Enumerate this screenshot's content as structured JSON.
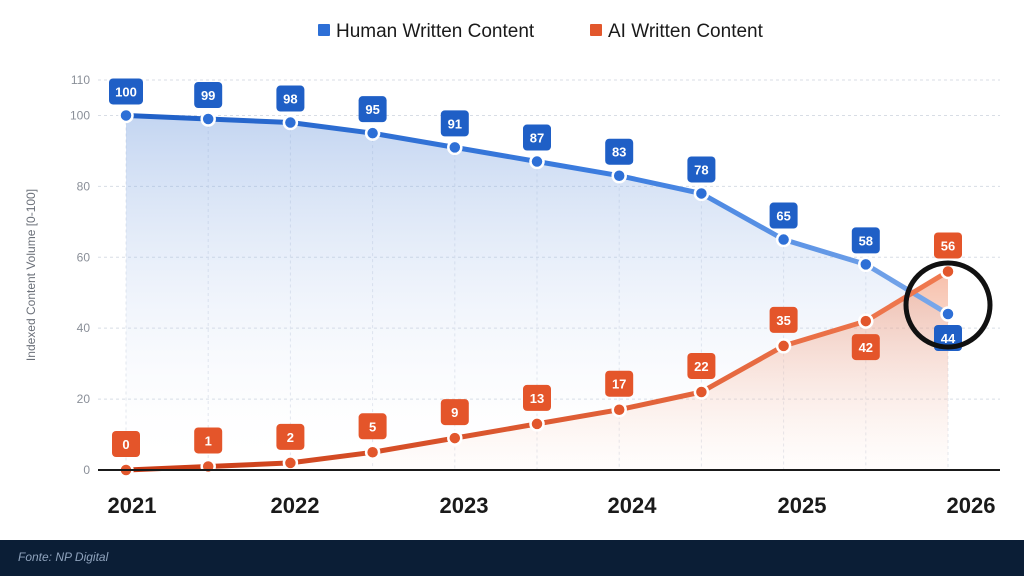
{
  "chart_data": {
    "type": "line",
    "ylabel": "Indexed Content Volume [0-100]",
    "ylim": [
      0,
      110
    ],
    "yticks": [
      0,
      20,
      40,
      60,
      80,
      100,
      110
    ],
    "year_labels": [
      "2021",
      "2022",
      "2023",
      "2024",
      "2025",
      "2026"
    ],
    "grid": true,
    "legend_position": "top-center",
    "series": [
      {
        "name": "Human Written Content",
        "color": "#2d6fd6",
        "label_color": "#1f5fc6",
        "values": [
          100,
          99,
          98,
          95,
          91,
          87,
          83,
          78,
          65,
          58,
          44
        ]
      },
      {
        "name": "AI Written Content",
        "color": "#e2572c",
        "label_color": "#e4552a",
        "values": [
          0,
          1,
          2,
          5,
          9,
          13,
          17,
          22,
          35,
          42,
          56
        ]
      }
    ],
    "highlight": "crossover-circle"
  },
  "footer": {
    "source": "Fonte: NP Digital"
  }
}
